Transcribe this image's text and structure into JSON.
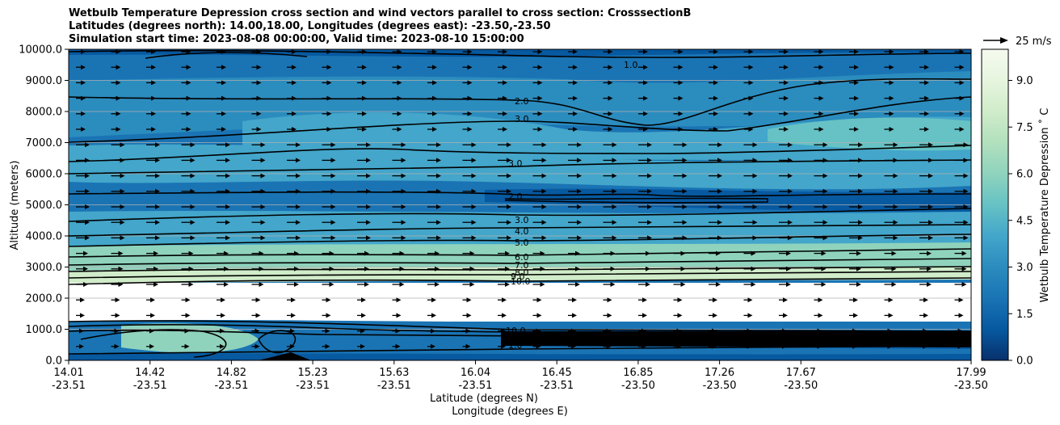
{
  "chart_data": {
    "type": "contour",
    "title_lines": [
      "Wetbulb Temperature Depression cross section and wind vectors parallel to cross section: CrosssectionB",
      "Latitudes (degrees north): 14.00,18.00, Longitudes (degrees east): -23.50,-23.50",
      "Simulation start time: 2023-08-08 00:00:00, Valid time: 2023-08-10 15:00:00"
    ],
    "ylabel": "Altitude (meters)",
    "xlabel_lat": "Latitude (degrees N)",
    "xlabel_lon": "Longitude (degrees E)",
    "ylim": [
      0,
      10000
    ],
    "yticks": [
      "0.0",
      "1000.0",
      "2000.0",
      "3000.0",
      "4000.0",
      "5000.0",
      "6000.0",
      "7000.0",
      "8000.0",
      "9000.0",
      "10000.0"
    ],
    "ytick_values": [
      0,
      1000,
      2000,
      3000,
      4000,
      5000,
      6000,
      7000,
      8000,
      9000,
      10000
    ],
    "xticks": [
      {
        "lat": "14.01",
        "lon": "-23.51"
      },
      {
        "lat": "14.42",
        "lon": "-23.51"
      },
      {
        "lat": "14.82",
        "lon": "-23.51"
      },
      {
        "lat": "15.23",
        "lon": "-23.51"
      },
      {
        "lat": "15.63",
        "lon": "-23.51"
      },
      {
        "lat": "16.04",
        "lon": "-23.51"
      },
      {
        "lat": "16.45",
        "lon": "-23.51"
      },
      {
        "lat": "16.85",
        "lon": "-23.50"
      },
      {
        "lat": "17.26",
        "lon": "-23.50"
      },
      {
        "lat": "17.67",
        "lon": "-23.50"
      },
      {
        "lat": "17.99",
        "lon": "-23.50"
      }
    ],
    "grid": "horizontal",
    "colorbar": {
      "label": "Wetbulb Temperature Depression ˚ C",
      "ticks": [
        "0.0",
        "1.5",
        "3.0",
        "4.5",
        "6.0",
        "7.5",
        "9.0"
      ],
      "tick_values": [
        0,
        1.5,
        3.0,
        4.5,
        6.0,
        7.5,
        9.0
      ],
      "range": [
        0,
        10
      ],
      "colormap": "GnBu_r"
    },
    "quiver_key": "25 m/s",
    "contour_labels": [
      "1.0",
      "2.0",
      "3.0",
      "4.0",
      "5.0",
      "6.0",
      "7.0",
      "8.0",
      "9.0",
      "10.0"
    ]
  }
}
